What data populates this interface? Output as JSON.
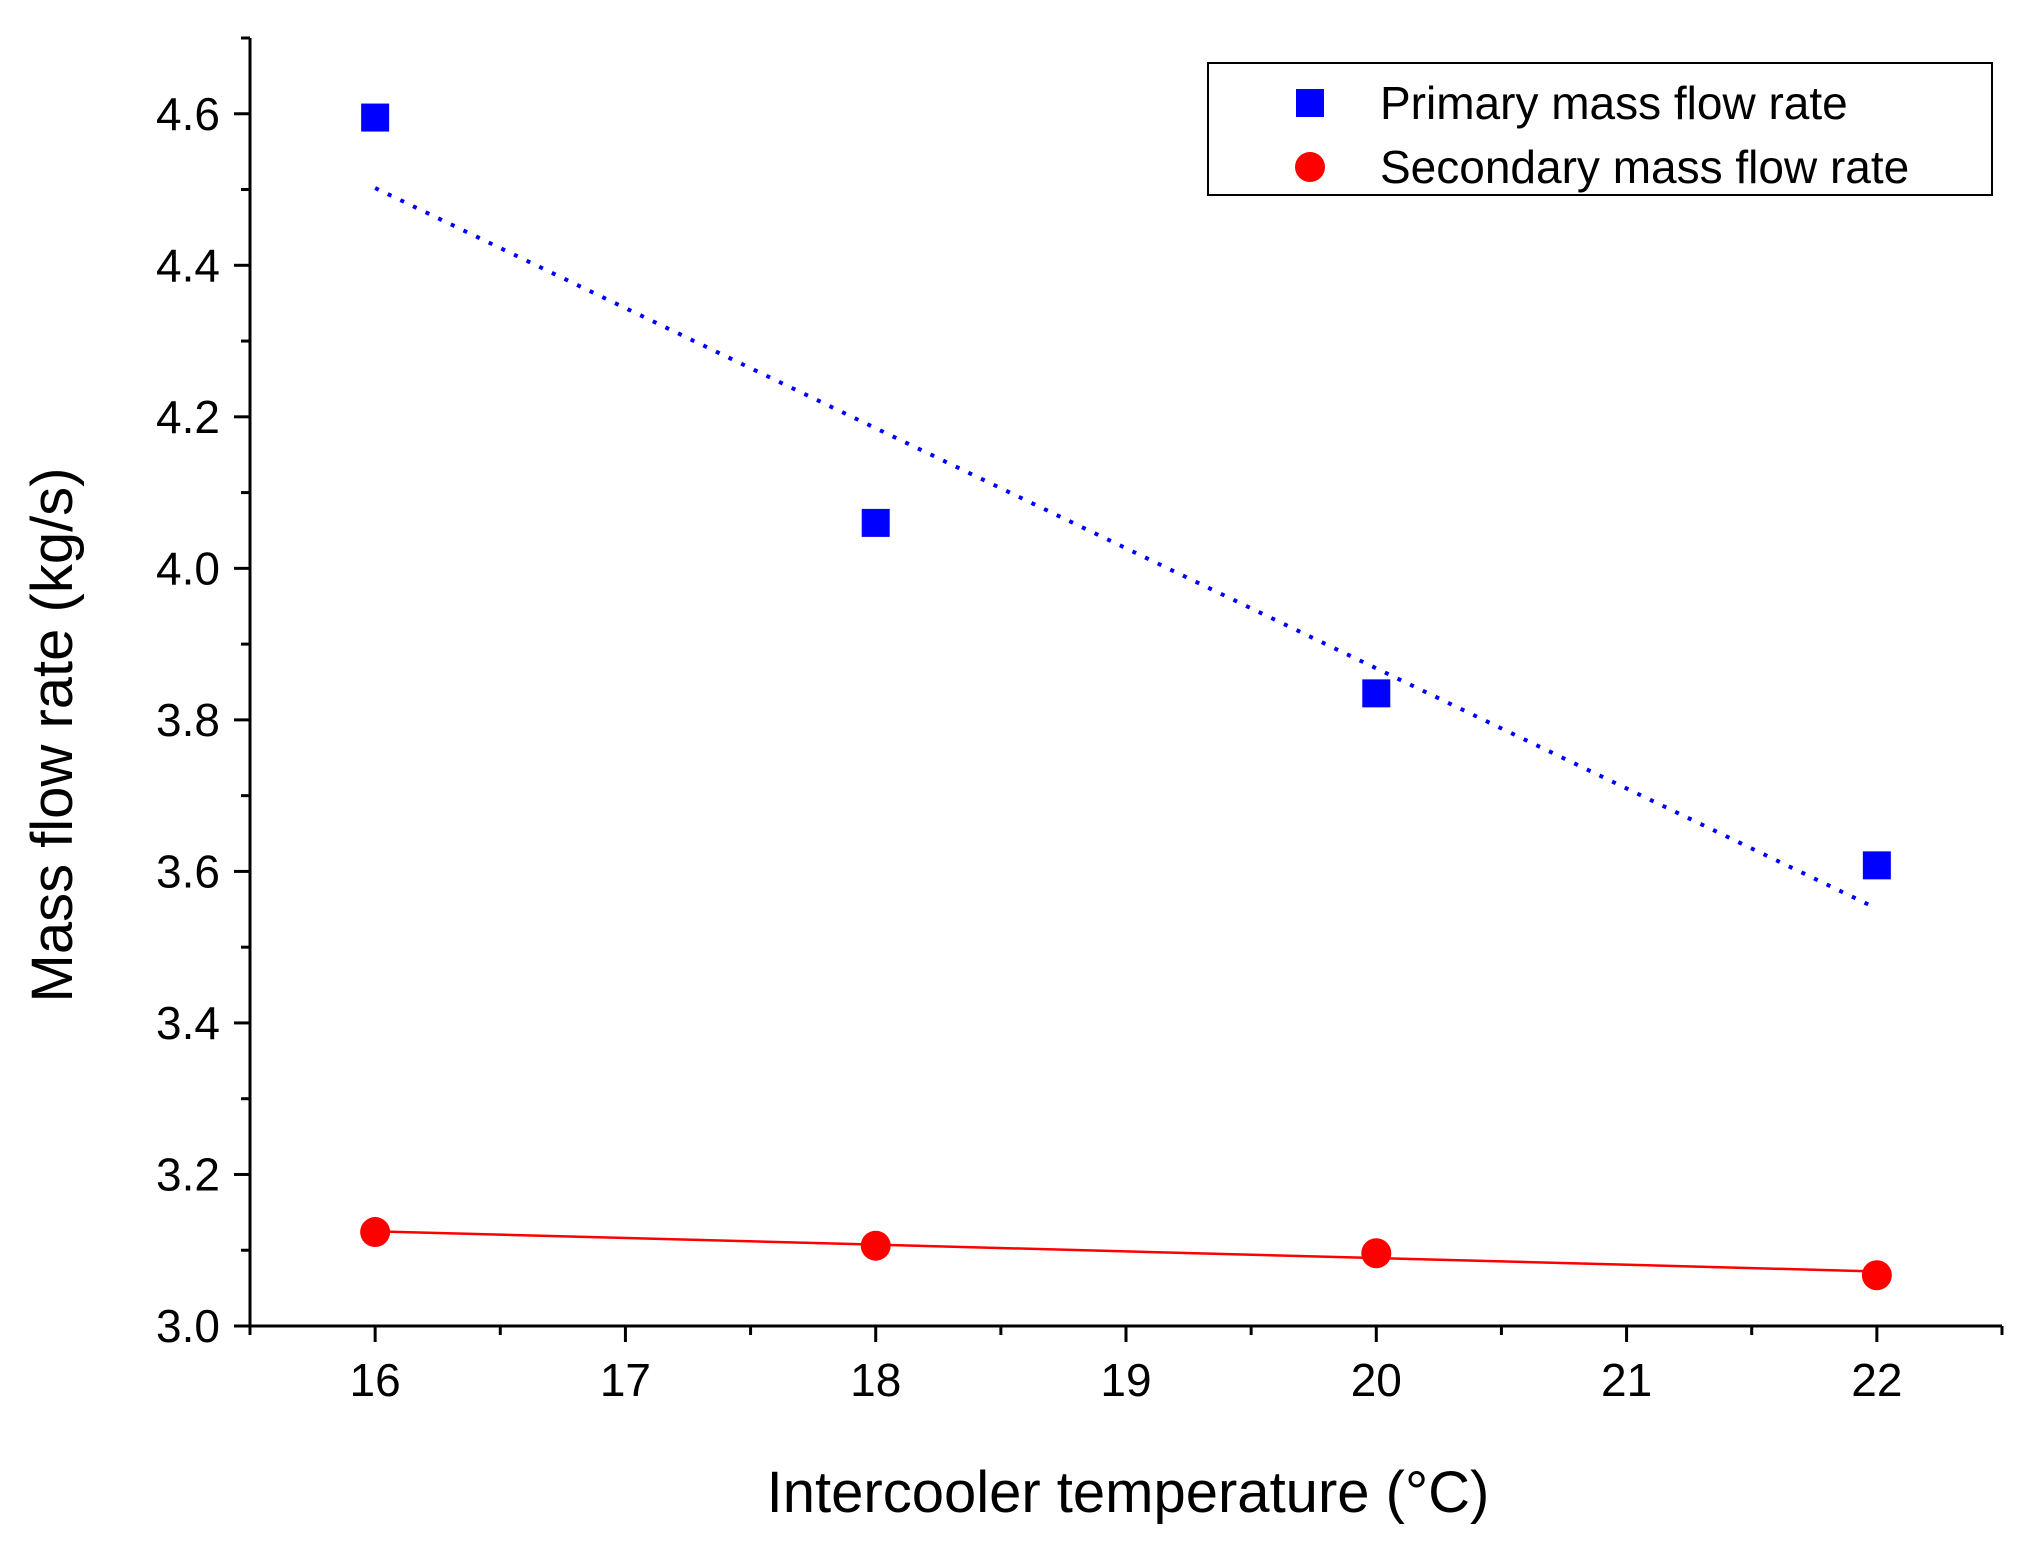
{
  "chart_data": {
    "type": "scatter",
    "title": "",
    "xlabel": "Intercooler temperature (°C)",
    "ylabel": "Mass flow rate (kg/s)",
    "xlim": [
      15.5,
      22.5
    ],
    "ylim": [
      3.0,
      4.7
    ],
    "x_ticks": [
      16,
      17,
      18,
      19,
      20,
      21,
      22
    ],
    "x_tick_labels": [
      "16",
      "17",
      "18",
      "19",
      "20",
      "21",
      "22"
    ],
    "y_ticks": [
      3.0,
      3.2,
      3.4,
      3.6,
      3.8,
      4.0,
      4.2,
      4.4,
      4.6
    ],
    "y_tick_labels": [
      "3.0",
      "3.2",
      "3.4",
      "3.6",
      "3.8",
      "4.0",
      "4.2",
      "4.4",
      "4.6"
    ],
    "grid": false,
    "legend_position": "top-right",
    "series": [
      {
        "name": "Primary mass flow rate",
        "marker": "square",
        "color": "#0000ff",
        "x": [
          16,
          18,
          20,
          22
        ],
        "y": [
          4.595,
          4.06,
          3.835,
          3.608
        ],
        "trendline": {
          "style": "dotted",
          "x": [
            16,
            22
          ],
          "y": [
            4.502,
            3.551
          ]
        }
      },
      {
        "name": "Secondary mass flow rate",
        "marker": "circle",
        "color": "#ff0000",
        "x": [
          16,
          18,
          20,
          22
        ],
        "y": [
          3.124,
          3.106,
          3.096,
          3.067
        ],
        "trendline": {
          "style": "solid",
          "x": [
            16,
            22
          ],
          "y": [
            3.125,
            3.072
          ]
        }
      }
    ]
  }
}
